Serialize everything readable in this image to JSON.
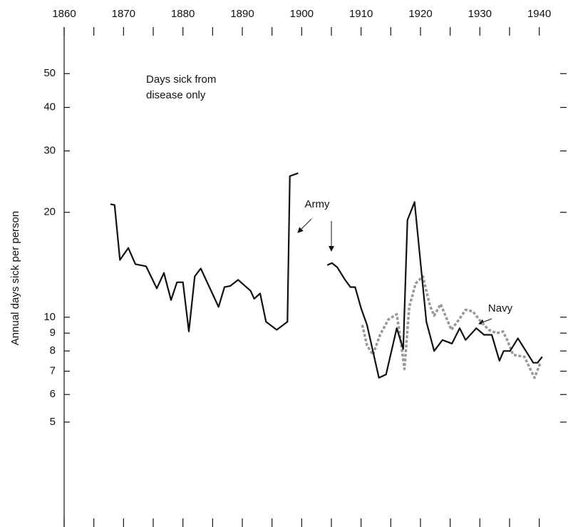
{
  "chart_data": {
    "type": "line",
    "y_label": "Annual days sick per person",
    "note": [
      "Days sick from",
      "disease only"
    ],
    "xlim": [
      1860,
      1944
    ],
    "xticks": [
      1860,
      1870,
      1880,
      1890,
      1900,
      1910,
      1920,
      1930,
      1940
    ],
    "xminorticks": [
      1865,
      1875,
      1885,
      1895,
      1905,
      1915,
      1925,
      1935
    ],
    "ylim": [
      2.5,
      68
    ],
    "ylog": true,
    "yticks": [
      5,
      6,
      7,
      8,
      9,
      10,
      20,
      30,
      40,
      50
    ],
    "series": [
      {
        "name": "Army",
        "color": "#111111",
        "dashed": false,
        "x": [
          1867.8,
          1868.5,
          1869.4,
          1870.8,
          1872,
          1873.8,
          1875.6,
          1876.8,
          1878,
          1879,
          1880,
          1881,
          1882,
          1883,
          1886,
          1887,
          1888,
          1889.3,
          1891.4,
          1892,
          1893,
          1894,
          1895.8,
          1897.6,
          1898,
          1899.4,
          1902,
          1904.3,
          1905.1,
          1906,
          1907.3,
          1908.2,
          1909,
          1910,
          1911,
          1913,
          1914.2,
          1916,
          1917.1,
          1917.8,
          1919,
          1921,
          1922.3,
          1923.7,
          1925.3,
          1926.6,
          1927.6,
          1929.4,
          1930.7,
          1932,
          1933.3,
          1934,
          1935.1,
          1936.4,
          1939,
          1939.7,
          1940.5
        ],
        "values": [
          21.1,
          21.0,
          14.6,
          15.8,
          14.2,
          14.0,
          12.1,
          13.4,
          11.2,
          12.6,
          12.6,
          9.1,
          13.1,
          13.8,
          10.7,
          12.2,
          12.3,
          12.8,
          11.9,
          11.3,
          11.7,
          9.7,
          9.2,
          9.7,
          25.4,
          25.9,
          null,
          14.1,
          14.3,
          13.9,
          12.8,
          12.2,
          12.2,
          10.6,
          9.5,
          6.7,
          6.85,
          9.3,
          8.1,
          19.0,
          21.4,
          9.7,
          8.0,
          8.6,
          8.4,
          9.3,
          8.6,
          9.3,
          8.9,
          8.9,
          7.5,
          8.0,
          8.0,
          8.7,
          7.4,
          7.4,
          7.7
        ]
      },
      {
        "name": "Navy",
        "color": "#999999",
        "dashed": true,
        "x": [
          1910.2,
          1911,
          1912,
          1913.2,
          1914.6,
          1916,
          1916.7,
          1917.3,
          1918.1,
          1919.2,
          1920.4,
          1921.6,
          1922.3,
          1923.4,
          1925.2,
          1926.4,
          1927.6,
          1928.8,
          1930.2,
          1931.5,
          1932.8,
          1933.9,
          1934.6,
          1935.6,
          1937.5,
          1939.2,
          1940.2
        ],
        "values": [
          9.5,
          8.3,
          7.8,
          8.9,
          9.85,
          10.2,
          8.5,
          7.1,
          10.7,
          12.5,
          13.1,
          10.8,
          10.1,
          10.9,
          9.2,
          9.8,
          10.5,
          10.4,
          9.7,
          9.2,
          9.0,
          9.1,
          8.6,
          7.8,
          7.7,
          6.7,
          7.4
        ]
      }
    ]
  }
}
